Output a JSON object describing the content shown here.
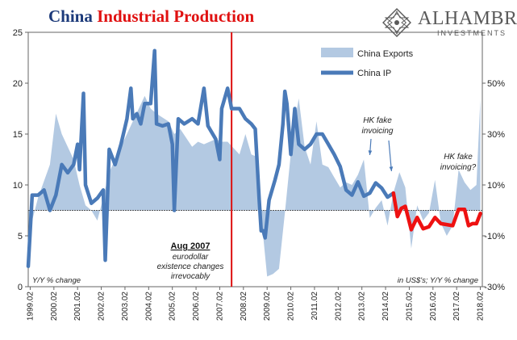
{
  "header": {
    "title_part1": "China",
    "title_part2": "Industrial Production",
    "logo_name": "ALHAMBRA",
    "logo_sub": "INVESTMENTS"
  },
  "colors": {
    "ip_line": "#4a7ab8",
    "ip_line_highlight": "#ee1111",
    "exports_area": "#b3c9e2",
    "marker_line": "#dd1111",
    "zero_line": "#555555",
    "title_blue": "#1c3a7a",
    "title_red": "#e01010"
  },
  "chart_data": {
    "type": "line",
    "xlim": [
      "1999-01",
      "2018-03"
    ],
    "ylim_left": [
      0,
      25
    ],
    "ylim_right": [
      -30,
      70
    ],
    "left_ticks": [
      "0",
      "5",
      "10",
      "15",
      "20",
      "25"
    ],
    "right_ticks": [
      "-30%",
      "-10%",
      "10%",
      "30%",
      "50%"
    ],
    "x_tick_labels": [
      "1999.02",
      "2000.02",
      "2001.02",
      "2002.02",
      "2003.02",
      "2004.02",
      "2005.02",
      "2006.02",
      "2007.02",
      "2008.02",
      "2009.02",
      "2010.02",
      "2011.02",
      "2012.02",
      "2013.02",
      "2014.02",
      "2015.02",
      "2016.02",
      "2017.02",
      "2018.02"
    ],
    "grid": false,
    "legend": {
      "position": "top-right",
      "entries": [
        {
          "label": "China Exports",
          "style": "area"
        },
        {
          "label": "China IP",
          "style": "line"
        }
      ]
    },
    "left_axis_note": "Y/Y % change",
    "right_axis_note": "in US$'s; Y/Y % change",
    "vertical_marker": {
      "x": "2007-08",
      "label_title": "Aug 2007",
      "label_lines": [
        "eurodollar",
        "existence changes",
        "irrevocably"
      ]
    },
    "annotations": [
      {
        "lines": [
          "HK fake",
          "invoicing"
        ],
        "arrows_to": [
          "2013-06",
          "2014-05"
        ]
      },
      {
        "lines": [
          "HK fake",
          "invoicing?"
        ]
      }
    ],
    "highlight_from": "2014-06",
    "series": [
      {
        "name": "China IP",
        "axis": "left",
        "points": [
          [
            "1999-01",
            2.0
          ],
          [
            "1999-03",
            9.0
          ],
          [
            "1999-06",
            9.0
          ],
          [
            "1999-09",
            9.5
          ],
          [
            "1999-12",
            7.5
          ],
          [
            "2000-03",
            9.0
          ],
          [
            "2000-06",
            12.0
          ],
          [
            "2000-09",
            11.2
          ],
          [
            "2000-12",
            12.0
          ],
          [
            "2001-02",
            14.0
          ],
          [
            "2001-03",
            11.5
          ],
          [
            "2001-05",
            19.0
          ],
          [
            "2001-06",
            10.0
          ],
          [
            "2001-09",
            8.2
          ],
          [
            "2001-12",
            8.7
          ],
          [
            "2002-03",
            9.5
          ],
          [
            "2002-04",
            2.6
          ],
          [
            "2002-06",
            13.5
          ],
          [
            "2002-09",
            12.0
          ],
          [
            "2002-12",
            14.0
          ],
          [
            "2003-03",
            16.5
          ],
          [
            "2003-05",
            19.5
          ],
          [
            "2003-06",
            16.5
          ],
          [
            "2003-08",
            17.0
          ],
          [
            "2003-10",
            16.0
          ],
          [
            "2003-12",
            18.0
          ],
          [
            "2004-03",
            18.0
          ],
          [
            "2004-05",
            23.2
          ],
          [
            "2004-06",
            16.0
          ],
          [
            "2004-09",
            15.8
          ],
          [
            "2004-12",
            16.0
          ],
          [
            "2005-02",
            14.0
          ],
          [
            "2005-03",
            7.5
          ],
          [
            "2005-05",
            16.5
          ],
          [
            "2005-08",
            16.0
          ],
          [
            "2005-12",
            16.5
          ],
          [
            "2006-03",
            16.0
          ],
          [
            "2006-06",
            19.5
          ],
          [
            "2006-08",
            15.8
          ],
          [
            "2006-12",
            14.5
          ],
          [
            "2007-02",
            12.5
          ],
          [
            "2007-03",
            17.5
          ],
          [
            "2007-06",
            19.5
          ],
          [
            "2007-08",
            17.5
          ],
          [
            "2007-12",
            17.5
          ],
          [
            "2008-03",
            16.5
          ],
          [
            "2008-06",
            16.0
          ],
          [
            "2008-08",
            15.5
          ],
          [
            "2008-10",
            8.5
          ],
          [
            "2008-11",
            5.5
          ],
          [
            "2008-12",
            5.5
          ],
          [
            "2009-01",
            4.8
          ],
          [
            "2009-03",
            8.5
          ],
          [
            "2009-06",
            10.5
          ],
          [
            "2009-08",
            12.0
          ],
          [
            "2009-10",
            16.0
          ],
          [
            "2009-11",
            19.2
          ],
          [
            "2009-12",
            18.0
          ],
          [
            "2010-02",
            13.0
          ],
          [
            "2010-04",
            17.5
          ],
          [
            "2010-06",
            14.0
          ],
          [
            "2010-09",
            13.5
          ],
          [
            "2010-12",
            14.0
          ],
          [
            "2011-03",
            15.0
          ],
          [
            "2011-06",
            15.0
          ],
          [
            "2011-09",
            14.0
          ],
          [
            "2011-12",
            13.0
          ],
          [
            "2012-03",
            11.8
          ],
          [
            "2012-06",
            9.5
          ],
          [
            "2012-09",
            9.0
          ],
          [
            "2012-12",
            10.3
          ],
          [
            "2013-03",
            8.9
          ],
          [
            "2013-06",
            9.2
          ],
          [
            "2013-09",
            10.2
          ],
          [
            "2013-12",
            9.7
          ],
          [
            "2014-03",
            8.8
          ],
          [
            "2014-06",
            9.2
          ],
          [
            "2014-08",
            6.9
          ],
          [
            "2014-10",
            7.7
          ],
          [
            "2014-12",
            7.9
          ],
          [
            "2015-03",
            5.6
          ],
          [
            "2015-06",
            6.8
          ],
          [
            "2015-09",
            5.7
          ],
          [
            "2015-12",
            5.9
          ],
          [
            "2016-03",
            6.8
          ],
          [
            "2016-06",
            6.2
          ],
          [
            "2016-09",
            6.1
          ],
          [
            "2016-12",
            6.0
          ],
          [
            "2017-03",
            7.6
          ],
          [
            "2017-06",
            7.6
          ],
          [
            "2017-08",
            6.0
          ],
          [
            "2017-10",
            6.2
          ],
          [
            "2017-12",
            6.2
          ],
          [
            "2018-02",
            7.2
          ]
        ]
      },
      {
        "name": "China Exports",
        "axis": "right",
        "points": [
          [
            "1999-01",
            -10
          ],
          [
            "1999-06",
            5
          ],
          [
            "1999-12",
            18
          ],
          [
            "2000-03",
            38
          ],
          [
            "2000-06",
            30
          ],
          [
            "2000-12",
            20
          ],
          [
            "2001-03",
            10
          ],
          [
            "2001-06",
            2
          ],
          [
            "2001-09",
            0
          ],
          [
            "2001-12",
            -4
          ],
          [
            "2002-03",
            5
          ],
          [
            "2002-06",
            15
          ],
          [
            "2002-12",
            25
          ],
          [
            "2003-03",
            30
          ],
          [
            "2003-06",
            35
          ],
          [
            "2003-12",
            45
          ],
          [
            "2004-03",
            40
          ],
          [
            "2004-06",
            38
          ],
          [
            "2004-12",
            35
          ],
          [
            "2005-03",
            30
          ],
          [
            "2005-06",
            32
          ],
          [
            "2005-12",
            25
          ],
          [
            "2006-03",
            27
          ],
          [
            "2006-06",
            26
          ],
          [
            "2006-12",
            28
          ],
          [
            "2007-03",
            27
          ],
          [
            "2007-06",
            27
          ],
          [
            "2007-12",
            22
          ],
          [
            "2008-03",
            30
          ],
          [
            "2008-06",
            22
          ],
          [
            "2008-09",
            21
          ],
          [
            "2008-11",
            -2
          ],
          [
            "2009-02",
            -26
          ],
          [
            "2009-05",
            -25
          ],
          [
            "2009-08",
            -23
          ],
          [
            "2009-11",
            -1
          ],
          [
            "2010-03",
            30
          ],
          [
            "2010-06",
            44
          ],
          [
            "2010-09",
            25
          ],
          [
            "2010-12",
            18
          ],
          [
            "2011-03",
            35
          ],
          [
            "2011-06",
            18
          ],
          [
            "2011-09",
            17
          ],
          [
            "2011-12",
            13
          ],
          [
            "2012-03",
            9
          ],
          [
            "2012-06",
            11
          ],
          [
            "2012-09",
            10
          ],
          [
            "2012-12",
            14
          ],
          [
            "2013-03",
            20
          ],
          [
            "2013-06",
            -3
          ],
          [
            "2013-09",
            1
          ],
          [
            "2013-12",
            4
          ],
          [
            "2014-03",
            -6
          ],
          [
            "2014-06",
            7
          ],
          [
            "2014-09",
            15
          ],
          [
            "2014-12",
            9
          ],
          [
            "2015-03",
            -15
          ],
          [
            "2015-06",
            2
          ],
          [
            "2015-09",
            -4
          ],
          [
            "2015-12",
            -1
          ],
          [
            "2016-03",
            12
          ],
          [
            "2016-06",
            -5
          ],
          [
            "2016-09",
            -10
          ],
          [
            "2016-12",
            -6
          ],
          [
            "2017-03",
            16
          ],
          [
            "2017-06",
            11
          ],
          [
            "2017-09",
            8
          ],
          [
            "2017-12",
            10
          ],
          [
            "2018-02",
            44
          ]
        ]
      }
    ]
  }
}
